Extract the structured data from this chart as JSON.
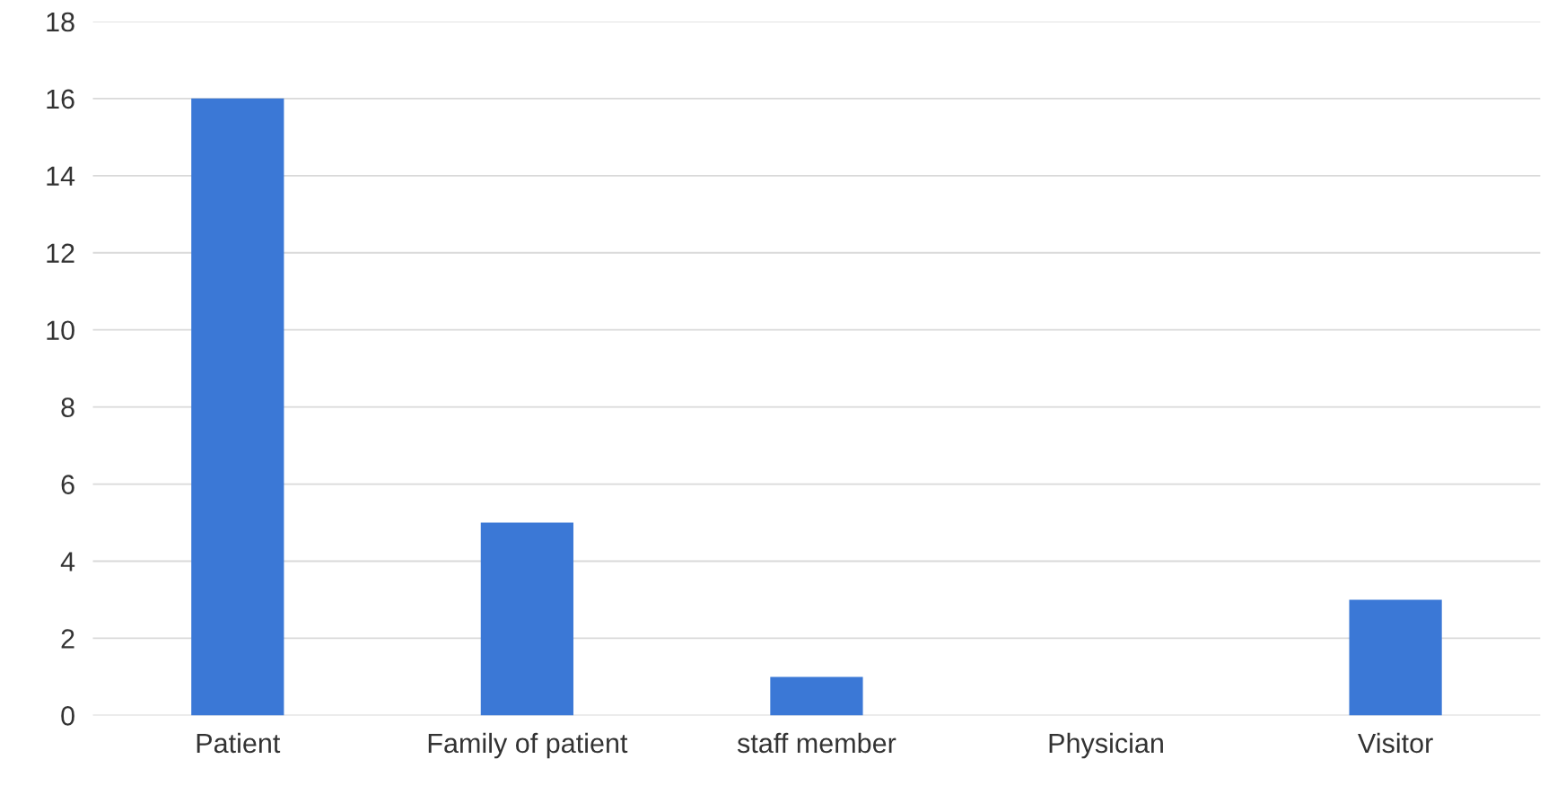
{
  "chart_data": {
    "type": "bar",
    "categories": [
      "Patient",
      "Family of patient",
      "staff member",
      "Physician",
      "Visitor"
    ],
    "values": [
      16,
      5,
      1,
      0,
      3
    ],
    "color": "#3b78d6",
    "ylim": [
      0,
      18
    ],
    "yticks": [
      0,
      2,
      4,
      6,
      8,
      10,
      12,
      14,
      16,
      18
    ],
    "grid": "y",
    "legend": false
  }
}
